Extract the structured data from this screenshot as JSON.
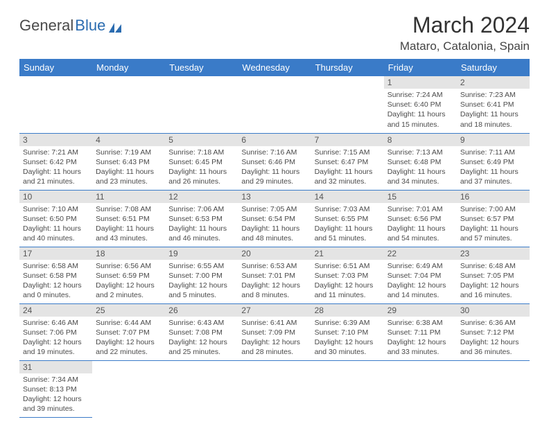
{
  "logo": {
    "part1": "General",
    "part2": "Blue"
  },
  "title": "March 2024",
  "location": "Mataro, Catalonia, Spain",
  "weekdays": [
    "Sunday",
    "Monday",
    "Tuesday",
    "Wednesday",
    "Thursday",
    "Friday",
    "Saturday"
  ],
  "colors": {
    "header_bg": "#3a7bc8",
    "header_text": "#ffffff",
    "daynum_bg": "#e4e4e4",
    "border": "#3a7bc8",
    "title_text": "#333333",
    "body_text": "#4a4a4a"
  },
  "weeks": [
    [
      null,
      null,
      null,
      null,
      null,
      {
        "n": "1",
        "sunrise": "7:24 AM",
        "sunset": "6:40 PM",
        "day_h": "11",
        "day_m": "15"
      },
      {
        "n": "2",
        "sunrise": "7:23 AM",
        "sunset": "6:41 PM",
        "day_h": "11",
        "day_m": "18"
      }
    ],
    [
      {
        "n": "3",
        "sunrise": "7:21 AM",
        "sunset": "6:42 PM",
        "day_h": "11",
        "day_m": "21"
      },
      {
        "n": "4",
        "sunrise": "7:19 AM",
        "sunset": "6:43 PM",
        "day_h": "11",
        "day_m": "23"
      },
      {
        "n": "5",
        "sunrise": "7:18 AM",
        "sunset": "6:45 PM",
        "day_h": "11",
        "day_m": "26"
      },
      {
        "n": "6",
        "sunrise": "7:16 AM",
        "sunset": "6:46 PM",
        "day_h": "11",
        "day_m": "29"
      },
      {
        "n": "7",
        "sunrise": "7:15 AM",
        "sunset": "6:47 PM",
        "day_h": "11",
        "day_m": "32"
      },
      {
        "n": "8",
        "sunrise": "7:13 AM",
        "sunset": "6:48 PM",
        "day_h": "11",
        "day_m": "34"
      },
      {
        "n": "9",
        "sunrise": "7:11 AM",
        "sunset": "6:49 PM",
        "day_h": "11",
        "day_m": "37"
      }
    ],
    [
      {
        "n": "10",
        "sunrise": "7:10 AM",
        "sunset": "6:50 PM",
        "day_h": "11",
        "day_m": "40"
      },
      {
        "n": "11",
        "sunrise": "7:08 AM",
        "sunset": "6:51 PM",
        "day_h": "11",
        "day_m": "43"
      },
      {
        "n": "12",
        "sunrise": "7:06 AM",
        "sunset": "6:53 PM",
        "day_h": "11",
        "day_m": "46"
      },
      {
        "n": "13",
        "sunrise": "7:05 AM",
        "sunset": "6:54 PM",
        "day_h": "11",
        "day_m": "48"
      },
      {
        "n": "14",
        "sunrise": "7:03 AM",
        "sunset": "6:55 PM",
        "day_h": "11",
        "day_m": "51"
      },
      {
        "n": "15",
        "sunrise": "7:01 AM",
        "sunset": "6:56 PM",
        "day_h": "11",
        "day_m": "54"
      },
      {
        "n": "16",
        "sunrise": "7:00 AM",
        "sunset": "6:57 PM",
        "day_h": "11",
        "day_m": "57"
      }
    ],
    [
      {
        "n": "17",
        "sunrise": "6:58 AM",
        "sunset": "6:58 PM",
        "day_h": "12",
        "day_m": "0"
      },
      {
        "n": "18",
        "sunrise": "6:56 AM",
        "sunset": "6:59 PM",
        "day_h": "12",
        "day_m": "2"
      },
      {
        "n": "19",
        "sunrise": "6:55 AM",
        "sunset": "7:00 PM",
        "day_h": "12",
        "day_m": "5"
      },
      {
        "n": "20",
        "sunrise": "6:53 AM",
        "sunset": "7:01 PM",
        "day_h": "12",
        "day_m": "8"
      },
      {
        "n": "21",
        "sunrise": "6:51 AM",
        "sunset": "7:03 PM",
        "day_h": "12",
        "day_m": "11"
      },
      {
        "n": "22",
        "sunrise": "6:49 AM",
        "sunset": "7:04 PM",
        "day_h": "12",
        "day_m": "14"
      },
      {
        "n": "23",
        "sunrise": "6:48 AM",
        "sunset": "7:05 PM",
        "day_h": "12",
        "day_m": "16"
      }
    ],
    [
      {
        "n": "24",
        "sunrise": "6:46 AM",
        "sunset": "7:06 PM",
        "day_h": "12",
        "day_m": "19"
      },
      {
        "n": "25",
        "sunrise": "6:44 AM",
        "sunset": "7:07 PM",
        "day_h": "12",
        "day_m": "22"
      },
      {
        "n": "26",
        "sunrise": "6:43 AM",
        "sunset": "7:08 PM",
        "day_h": "12",
        "day_m": "25"
      },
      {
        "n": "27",
        "sunrise": "6:41 AM",
        "sunset": "7:09 PM",
        "day_h": "12",
        "day_m": "28"
      },
      {
        "n": "28",
        "sunrise": "6:39 AM",
        "sunset": "7:10 PM",
        "day_h": "12",
        "day_m": "30"
      },
      {
        "n": "29",
        "sunrise": "6:38 AM",
        "sunset": "7:11 PM",
        "day_h": "12",
        "day_m": "33"
      },
      {
        "n": "30",
        "sunrise": "6:36 AM",
        "sunset": "7:12 PM",
        "day_h": "12",
        "day_m": "36"
      }
    ],
    [
      {
        "n": "31",
        "sunrise": "7:34 AM",
        "sunset": "8:13 PM",
        "day_h": "12",
        "day_m": "39"
      },
      null,
      null,
      null,
      null,
      null,
      null
    ]
  ]
}
